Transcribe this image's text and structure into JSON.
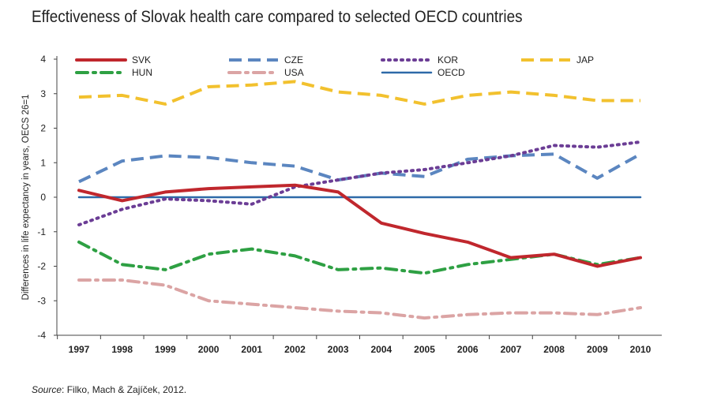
{
  "source": {
    "prefix": "Source",
    "text": ": Filko, Mach & Zajíček, 2012."
  },
  "chart_data": {
    "type": "line",
    "title": "Effectiveness of Slovak health care compared to selected OECD countries",
    "xlabel": "",
    "ylabel": "Differences in life expectancy in years, OECS 26=1",
    "categories": [
      "1997",
      "1998",
      "1999",
      "2000",
      "2001",
      "2002",
      "2003",
      "2004",
      "2005",
      "2006",
      "2007",
      "2008",
      "2009",
      "2010"
    ],
    "ylim": [
      -4,
      4
    ],
    "yticks": [
      4,
      3,
      2,
      1,
      0,
      -1,
      -2,
      -3,
      -4
    ],
    "grid": false,
    "legend_position": "top",
    "series": [
      {
        "name": "SVK",
        "color": "#c0272d",
        "style": "solid",
        "width": 4,
        "values": [
          0.2,
          -0.1,
          0.15,
          0.25,
          0.3,
          0.35,
          0.15,
          -0.75,
          -1.05,
          -1.3,
          -1.75,
          -1.65,
          -2.0,
          -1.75
        ]
      },
      {
        "name": "CZE",
        "color": "#5b86c0",
        "style": "dash",
        "width": 4,
        "values": [
          0.45,
          1.05,
          1.2,
          1.15,
          1.0,
          0.9,
          0.5,
          0.7,
          0.6,
          1.1,
          1.2,
          1.25,
          0.55,
          1.25
        ]
      },
      {
        "name": "KOR",
        "color": "#6b3d95",
        "style": "dot",
        "width": 4,
        "values": [
          -0.8,
          -0.35,
          -0.05,
          -0.1,
          -0.2,
          0.3,
          0.5,
          0.7,
          0.8,
          1.0,
          1.2,
          1.5,
          1.45,
          1.6
        ]
      },
      {
        "name": "JAP",
        "color": "#f2c12e",
        "style": "dash",
        "width": 4,
        "values": [
          2.9,
          2.95,
          2.7,
          3.2,
          3.25,
          3.35,
          3.05,
          2.95,
          2.7,
          2.95,
          3.05,
          2.95,
          2.8,
          2.8
        ]
      },
      {
        "name": "HUN",
        "color": "#2ea043",
        "style": "dashdot",
        "width": 4,
        "values": [
          -1.3,
          -1.95,
          -2.1,
          -1.65,
          -1.5,
          -1.7,
          -2.1,
          -2.05,
          -2.2,
          -1.95,
          -1.8,
          -1.65,
          -1.95,
          -1.75
        ]
      },
      {
        "name": "USA",
        "color": "#dba4a4",
        "style": "dashdot",
        "width": 4,
        "values": [
          -2.4,
          -2.4,
          -2.55,
          -3.0,
          -3.1,
          -3.2,
          -3.3,
          -3.35,
          -3.5,
          -3.4,
          -3.35,
          -3.35,
          -3.4,
          -3.2
        ]
      },
      {
        "name": "OECD",
        "color": "#2e6aa8",
        "style": "solid",
        "width": 2.5,
        "values": [
          0,
          0,
          0,
          0,
          0,
          0,
          0,
          0,
          0,
          0,
          0,
          0,
          0,
          0
        ]
      }
    ]
  }
}
